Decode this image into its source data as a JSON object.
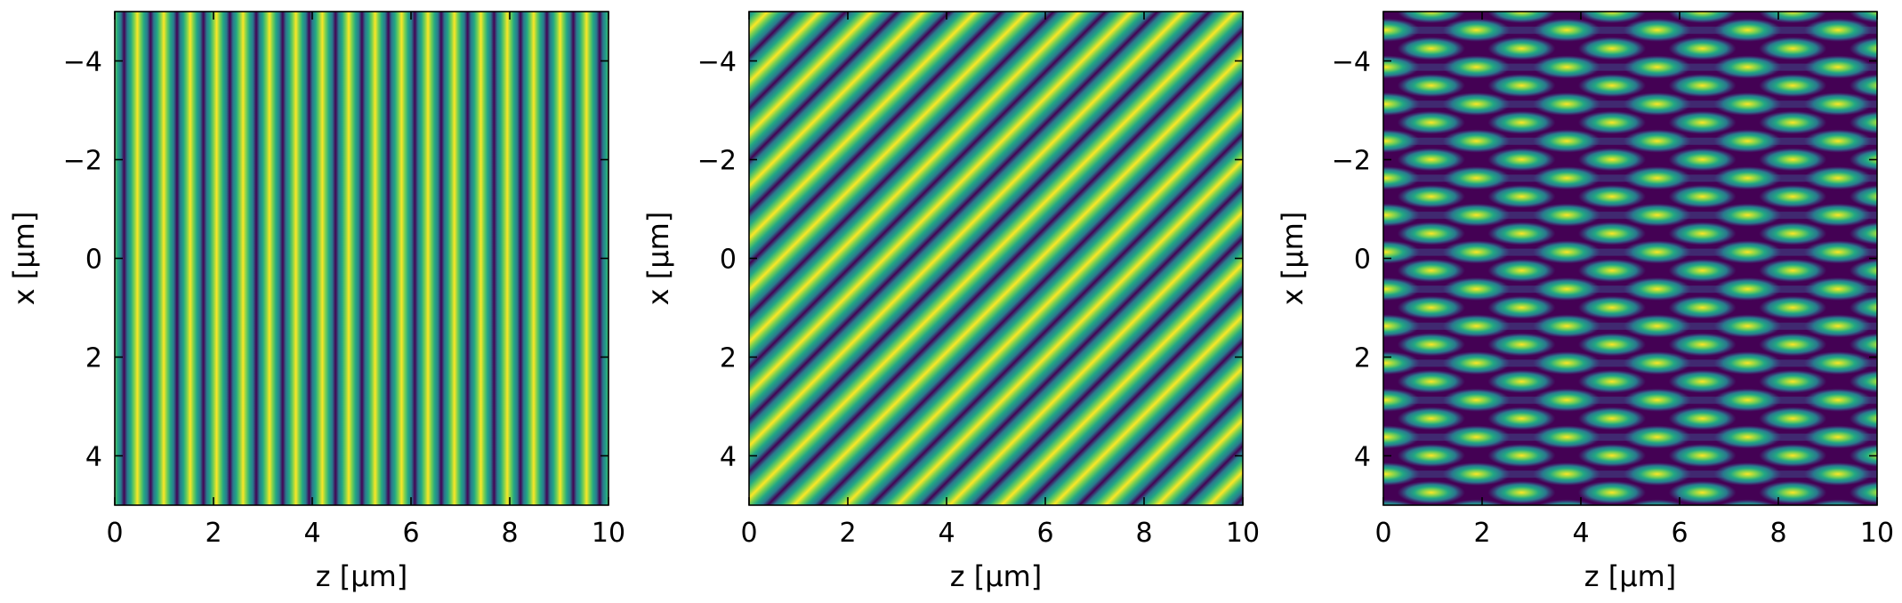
{
  "chart_data": [
    {
      "type": "heatmap",
      "title": "",
      "xlabel": "z [µm]",
      "ylabel": "x [µm]",
      "xlim": [
        0,
        10
      ],
      "ylim": [
        5,
        -5
      ],
      "xticks": [
        0,
        2,
        4,
        6,
        8,
        10
      ],
      "yticks": [
        -4,
        -2,
        0,
        2,
        4
      ],
      "xtick_labels": [
        "0",
        "2",
        "4",
        "6",
        "8",
        "10"
      ],
      "ytick_labels": [
        "−4",
        "−2",
        "0",
        "2",
        "4"
      ],
      "colormap": "viridis",
      "pattern": "vertical-fringes",
      "fringe_period_z": 0.535,
      "fringe_count": 18.7
    },
    {
      "type": "heatmap",
      "title": "",
      "xlabel": "z [µm]",
      "ylabel": "x [µm]",
      "xlim": [
        0,
        10
      ],
      "ylim": [
        5,
        -5
      ],
      "xticks": [
        0,
        2,
        4,
        6,
        8,
        10
      ],
      "yticks": [
        -4,
        -2,
        0,
        2,
        4
      ],
      "xtick_labels": [
        "0",
        "2",
        "4",
        "6",
        "8",
        "10"
      ],
      "ytick_labels": [
        "−4",
        "−2",
        "0",
        "2",
        "4"
      ],
      "colormap": "viridis",
      "pattern": "diagonal-fringes",
      "fringe_period_z": 0.535,
      "fringe_period_x": 0.535
    },
    {
      "type": "heatmap",
      "title": "",
      "xlabel": "z [µm]",
      "ylabel": "x [µm]",
      "xlim": [
        0,
        10
      ],
      "ylim": [
        5,
        -5
      ],
      "xticks": [
        0,
        2,
        4,
        6,
        8,
        10
      ],
      "yticks": [
        -4,
        -2,
        0,
        2,
        4
      ],
      "xtick_labels": [
        "0",
        "2",
        "4",
        "6",
        "8",
        "10"
      ],
      "ytick_labels": [
        "−4",
        "−2",
        "0",
        "2",
        "4"
      ],
      "colormap": "viridis",
      "pattern": "interference-lattice",
      "lattice_period_z": 1.83,
      "lattice_period_x": 0.75
    }
  ]
}
